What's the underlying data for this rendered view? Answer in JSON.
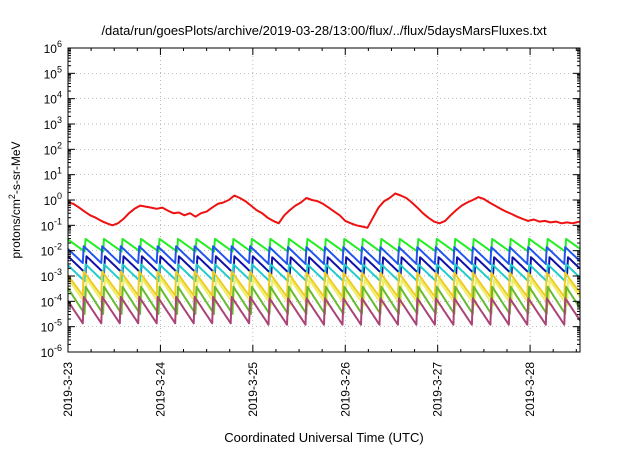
{
  "chart_data": {
    "type": "line",
    "title": "/data/run/goesPlots/archive/2019-03-28/13:00/flux/../flux/5daysMarsFluxes.txt",
    "xlabel": "Coordinated Universal Time (UTC)",
    "ylabel": {
      "prefix": "protons/cm",
      "sup": "2",
      "suffix": "-s-sr-MeV"
    },
    "xlim": [
      "2019-03-23",
      "2019-03-28T13:00"
    ],
    "x_ticks": [
      "2019-3-23",
      "2019-3-24",
      "2019-3-25",
      "2019-3-26",
      "2019-3-27",
      "2019-3-28"
    ],
    "y_scale": "log",
    "ylim": [
      1e-06,
      1000000.0
    ],
    "y_tick_exponents": [
      -6,
      -5,
      -4,
      -3,
      -2,
      -1,
      0,
      1,
      2,
      3,
      4,
      5,
      6
    ],
    "y_tick_base": "10",
    "grid": true,
    "x_days": [
      0,
      0.06,
      0.12,
      0.18,
      0.24,
      0.3,
      0.36,
      0.42,
      0.48,
      0.54,
      0.6,
      0.66,
      0.72,
      0.78,
      0.84,
      0.9,
      0.96,
      1.02,
      1.08,
      1.14,
      1.2,
      1.26,
      1.32,
      1.38,
      1.44,
      1.5,
      1.56,
      1.62,
      1.68,
      1.74,
      1.8,
      1.86,
      1.92,
      1.98,
      2.04,
      2.1,
      2.16,
      2.22,
      2.28,
      2.34,
      2.4,
      2.46,
      2.52,
      2.58,
      2.64,
      2.7,
      2.76,
      2.82,
      2.88,
      2.94,
      3.0,
      3.06,
      3.12,
      3.18,
      3.24,
      3.3,
      3.36,
      3.42,
      3.48,
      3.54,
      3.6,
      3.66,
      3.72,
      3.78,
      3.84,
      3.9,
      3.96,
      4.02,
      4.08,
      4.14,
      4.2,
      4.26,
      4.32,
      4.38,
      4.44,
      4.5,
      4.56,
      4.62,
      4.68,
      4.74,
      4.8,
      4.86,
      4.92,
      4.98,
      5.04,
      5.1,
      5.16,
      5.22,
      5.28,
      5.34,
      5.4,
      5.46,
      5.5,
      5.54
    ],
    "series": [
      {
        "color": "#ee1111",
        "values": [
          0.8,
          0.7,
          0.5,
          0.35,
          0.25,
          0.2,
          0.15,
          0.12,
          0.1,
          0.12,
          0.18,
          0.3,
          0.45,
          0.6,
          0.55,
          0.5,
          0.45,
          0.5,
          0.38,
          0.3,
          0.32,
          0.25,
          0.3,
          0.22,
          0.3,
          0.35,
          0.5,
          0.7,
          0.8,
          1.0,
          1.5,
          1.2,
          0.9,
          0.6,
          0.4,
          0.3,
          0.2,
          0.15,
          0.12,
          0.25,
          0.4,
          0.6,
          0.8,
          1.2,
          1.0,
          0.9,
          0.7,
          0.5,
          0.35,
          0.25,
          0.15,
          0.12,
          0.1,
          0.09,
          0.08,
          0.2,
          0.5,
          0.9,
          1.2,
          1.8,
          1.5,
          1.2,
          0.8,
          0.5,
          0.3,
          0.2,
          0.14,
          0.12,
          0.15,
          0.25,
          0.4,
          0.6,
          0.8,
          1.0,
          1.3,
          1.1,
          0.8,
          0.6,
          0.45,
          0.35,
          0.28,
          0.22,
          0.18,
          0.15,
          0.17,
          0.14,
          0.15,
          0.13,
          0.14,
          0.12,
          0.13,
          0.12,
          0.13,
          0.14
        ]
      },
      {
        "color": "#22ee22",
        "peak": 0.03,
        "base": 0.009
      },
      {
        "color": "#2255ee",
        "peak": 0.015,
        "base": 0.003
      },
      {
        "color": "#1111aa",
        "peak": 0.006,
        "base": 0.0012
      },
      {
        "color": "#22cccc",
        "peak": 0.003,
        "base": 0.0006
      },
      {
        "color": "#eecc22",
        "peak": 0.0015,
        "base": 0.00015
      },
      {
        "color": "#eeee66",
        "peak": 0.0008,
        "base": 7e-05
      },
      {
        "color": "#66bb33",
        "peak": 0.0004,
        "base": 3e-05
      },
      {
        "color": "#aa4477",
        "peak": 0.00015,
        "base": 1.2e-05
      }
    ]
  }
}
